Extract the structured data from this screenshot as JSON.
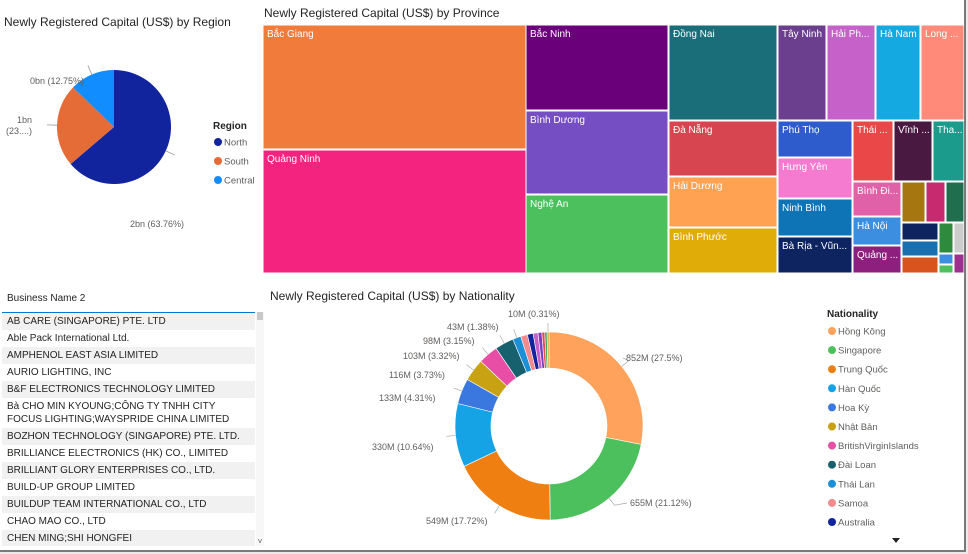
{
  "region_panel": {
    "title": "Newly Registered Capital (US$) by Region"
  },
  "province_panel": {
    "title": "Newly Registered Capital (US$) by Province"
  },
  "nationality_panel": {
    "title": "Newly Registered Capital (US$) by Nationality"
  },
  "table": {
    "header": "Business Name 2",
    "rows": [
      "AB CARE (SINGAPORE) PTE. LTD",
      "Able Pack International Ltd.",
      "AMPHENOL EAST ASIA LIMITED",
      "AURIO LIGHTING, INC",
      "B&F ELECTRONICS TECHNOLOGY LIMITED",
      "Bà CHO MIN KYOUNG;CÔNG TY TNHH CITY FOCUS LIGHTING;WAYSPRIDE CHINA LIMITED",
      "BOZHON TECHNOLOGY (SINGAPORE) PTE. LTD.",
      "BRILLIANCE ELECTRONICS (HK) CO., LIMITED",
      "BRILLIANT GLORY ENTERPRISES CO., LTD.",
      "BUILD-UP GROUP LIMITED",
      "BUILDUP TEAM INTERNATIONAL CO., LTD",
      "CHAO MAO CO., LTD",
      "CHEN MING;SHI HONGFEI"
    ]
  },
  "chart_data": [
    {
      "type": "pie",
      "title": "Newly Registered Capital (US$) by Region",
      "legend_title": "Region",
      "legend_position": "right",
      "slices": [
        {
          "name": "North",
          "value": 63.76,
          "label": "2bn (63.76%)",
          "color": "#12239e"
        },
        {
          "name": "South",
          "value": 23.49,
          "label": "1bn (23....)",
          "color": "#e66c37"
        },
        {
          "name": "Central",
          "value": 12.75,
          "label": "0bn (12.75%)",
          "color": "#118dff"
        }
      ]
    },
    {
      "type": "treemap",
      "title": "Newly Registered Capital (US$) by Province",
      "labeled_tiles": [
        {
          "name": "Bắc Giang",
          "color": "#f07b3a"
        },
        {
          "name": "Quảng Ninh",
          "color": "#f4237f"
        },
        {
          "name": "Bắc Ninh",
          "color": "#6b007b"
        },
        {
          "name": "Bình Dương",
          "color": "#744ec2"
        },
        {
          "name": "Nghệ An",
          "color": "#4cc05d"
        },
        {
          "name": "Đồng Nai",
          "color": "#1a6e7a"
        },
        {
          "name": "Đà Nẵng",
          "color": "#d64550"
        },
        {
          "name": "Hải Dương",
          "color": "#ffa251"
        },
        {
          "name": "Bình Phước",
          "color": "#e0ad08"
        },
        {
          "name": "Tây Ninh",
          "color": "#6b3f8e"
        },
        {
          "name": "Hải Ph...",
          "color": "#c561c8"
        },
        {
          "name": "Hà Nam",
          "color": "#14a9e0"
        },
        {
          "name": "Long ...",
          "color": "#ff8a7a"
        },
        {
          "name": "Phú Thọ",
          "color": "#2f5ccc"
        },
        {
          "name": "Hưng Yên",
          "color": "#f57bd0"
        },
        {
          "name": "Ninh Bình",
          "color": "#0f74b5"
        },
        {
          "name": "Bà Rịa - Vũn...",
          "color": "#0d2460"
        },
        {
          "name": "Thái ...",
          "color": "#ea4848"
        },
        {
          "name": "Vĩnh ...",
          "color": "#4a1942"
        },
        {
          "name": "Tha...",
          "color": "#1a9b8c"
        },
        {
          "name": "Bình Đi...",
          "color": "#e061a7"
        },
        {
          "name": "Hà Nội",
          "color": "#3c8fe0"
        },
        {
          "name": "Quảng ...",
          "color": "#8e1f7e"
        }
      ]
    },
    {
      "type": "donut",
      "title": "Newly Registered Capital (US$) by Nationality",
      "legend_title": "Nationality",
      "legend_position": "right",
      "slices": [
        {
          "name": "Hồng Kông",
          "value": 852,
          "pct": 27.5,
          "label": "852M (27.5%)",
          "color": "#ffa35c"
        },
        {
          "name": "Singapore",
          "value": 655,
          "pct": 21.12,
          "label": "655M (21.12%)",
          "color": "#4dc05e"
        },
        {
          "name": "Trung Quốc",
          "value": 549,
          "pct": 17.72,
          "label": "549M (17.72%)",
          "color": "#f07f12"
        },
        {
          "name": "Hàn Quốc",
          "value": 330,
          "pct": 10.64,
          "label": "330M (10.64%)",
          "color": "#15a3e6"
        },
        {
          "name": "Hoa Kỳ",
          "value": 133,
          "pct": 4.31,
          "label": "133M (4.31%)",
          "color": "#3a78e0"
        },
        {
          "name": "Nhật Bản",
          "value": 116,
          "pct": 3.73,
          "label": "116M (3.73%)",
          "color": "#c8a213"
        },
        {
          "name": "BritishVirginIslands",
          "value": 103,
          "pct": 3.32,
          "label": "103M (3.32%)",
          "color": "#e94ea7"
        },
        {
          "name": "Đài Loan",
          "value": 98,
          "pct": 3.15,
          "label": "98M (3.15%)",
          "color": "#17606e"
        },
        {
          "name": "Thái Lan",
          "value": 43,
          "pct": 1.38,
          "label": "43M (1.38%)",
          "color": "#1d8fd6"
        },
        {
          "name": "Samoa",
          "value": 35,
          "pct": 1.13,
          "label": "",
          "color": "#f28b8b"
        },
        {
          "name": "Australia",
          "value": 30,
          "pct": 0.97,
          "label": "",
          "color": "#12239e"
        },
        {
          "name": "",
          "value": 25,
          "pct": 0.8,
          "label": "",
          "color": "#c561c8"
        },
        {
          "name": "",
          "value": 20,
          "pct": 0.65,
          "label": "",
          "color": "#7b3fbf"
        },
        {
          "name": "",
          "value": 15,
          "pct": 0.48,
          "label": "",
          "color": "#e04b4b"
        },
        {
          "name": "",
          "value": 12,
          "pct": 0.39,
          "label": "",
          "color": "#3ba55d"
        },
        {
          "name": "",
          "value": 10,
          "pct": 0.31,
          "label": "10M (0.31%)",
          "color": "#d4a014"
        }
      ]
    }
  ]
}
